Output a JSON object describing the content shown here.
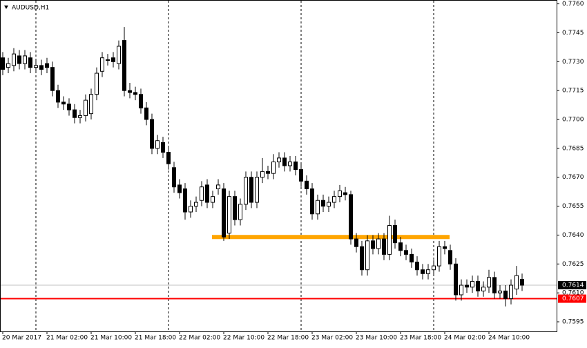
{
  "chart_data": {
    "type": "candlestick",
    "title": "AUDUSD,H1",
    "categories": [
      "20 Mar 2017",
      null,
      null,
      null,
      null,
      null,
      null,
      null,
      "21 Mar 02:00",
      null,
      null,
      null,
      null,
      null,
      null,
      null,
      "21 Mar 10:00",
      null,
      null,
      null,
      null,
      null,
      null,
      null,
      "21 Mar 18:00",
      null,
      null,
      null,
      null,
      null,
      null,
      null,
      "22 Mar 02:00",
      null,
      null,
      null,
      null,
      null,
      null,
      null,
      "22 Mar 10:00",
      null,
      null,
      null,
      null,
      null,
      null,
      null,
      "22 Mar 18:00",
      null,
      null,
      null,
      null,
      null,
      null,
      null,
      "23 Mar 02:00",
      null,
      null,
      null,
      null,
      null,
      null,
      null,
      "23 Mar 10:00",
      null,
      null,
      null,
      null,
      null,
      null,
      null,
      "23 Mar 18:00",
      null,
      null,
      null,
      null,
      null,
      null,
      null,
      "24 Mar 02:00",
      null,
      null,
      null,
      null,
      null,
      null,
      null,
      "24 Mar 10:00",
      null,
      null,
      null,
      null,
      null,
      null
    ],
    "open": [
      0.7732,
      0.7727,
      0.7728,
      0.7733,
      0.7729,
      0.7732,
      0.7727,
      0.7728,
      0.7729,
      0.7727,
      0.7715,
      0.7709,
      0.7708,
      0.7705,
      0.7701,
      0.7702,
      0.7703,
      0.7713,
      0.7725,
      0.7731,
      0.7732,
      0.7729,
      0.7741,
      0.7715,
      0.7714,
      0.7713,
      0.7706,
      0.77,
      0.7685,
      0.7688,
      0.7683,
      0.7675,
      0.7666,
      0.7664,
      0.7652,
      0.7655,
      0.7658,
      0.7666,
      0.7657,
      0.7664,
      0.7664,
      0.7641,
      0.766,
      0.7648,
      0.7656,
      0.767,
      0.7657,
      0.767,
      0.7673,
      0.7672,
      0.7678,
      0.768,
      0.7676,
      0.7678,
      0.7674,
      0.7668,
      0.7664,
      0.7651,
      0.7658,
      0.7655,
      0.7657,
      0.766,
      0.7662,
      0.7661,
      0.7638,
      0.7634,
      0.7622,
      0.7637,
      0.7633,
      0.7638,
      0.763,
      0.7645,
      0.7636,
      0.7632,
      0.763,
      0.7626,
      0.7622,
      0.762,
      0.7622,
      0.7624,
      0.7634,
      0.7632,
      0.7625,
      0.7609,
      0.7614,
      0.7613,
      0.7616,
      0.7611,
      0.7613,
      0.7618,
      0.761,
      0.7611,
      0.7607,
      0.7612,
      0.7617
    ],
    "high": [
      0.7735,
      0.7732,
      0.7737,
      0.7736,
      0.7736,
      0.7735,
      0.7731,
      0.7731,
      0.7732,
      0.773,
      0.7718,
      0.7712,
      0.7711,
      0.7708,
      0.7705,
      0.7713,
      0.7716,
      0.7727,
      0.7735,
      0.7734,
      0.7735,
      0.7741,
      0.7748,
      0.7719,
      0.7717,
      0.7716,
      0.7709,
      0.7703,
      0.7692,
      0.7691,
      0.7686,
      0.7678,
      0.7669,
      0.7667,
      0.7658,
      0.766,
      0.7668,
      0.7669,
      0.7663,
      0.7669,
      0.7667,
      0.7663,
      0.7663,
      0.7659,
      0.7673,
      0.7673,
      0.7673,
      0.768,
      0.7676,
      0.7682,
      0.7683,
      0.7683,
      0.7681,
      0.7681,
      0.7677,
      0.7671,
      0.7667,
      0.7661,
      0.7661,
      0.766,
      0.7663,
      0.7666,
      0.7665,
      0.7663,
      0.7641,
      0.7637,
      0.764,
      0.764,
      0.7641,
      0.7641,
      0.765,
      0.7648,
      0.7639,
      0.7635,
      0.7633,
      0.7629,
      0.7625,
      0.7625,
      0.7627,
      0.7637,
      0.7637,
      0.7635,
      0.7628,
      0.7617,
      0.7617,
      0.7619,
      0.7619,
      0.7616,
      0.7622,
      0.7621,
      0.7614,
      0.7614,
      0.7617,
      0.7624,
      0.762
    ],
    "low": [
      0.7723,
      0.7724,
      0.7725,
      0.7726,
      0.7726,
      0.7724,
      0.7724,
      0.7723,
      0.7724,
      0.7712,
      0.7706,
      0.7705,
      0.7702,
      0.7698,
      0.7698,
      0.7699,
      0.77,
      0.771,
      0.7722,
      0.7728,
      0.7727,
      0.7726,
      0.7712,
      0.7711,
      0.771,
      0.7703,
      0.7697,
      0.7682,
      0.7682,
      0.768,
      0.7674,
      0.7662,
      0.7659,
      0.7648,
      0.7649,
      0.7652,
      0.7655,
      0.7654,
      0.7654,
      0.7661,
      0.7637,
      0.7638,
      0.7645,
      0.7645,
      0.7653,
      0.7654,
      0.7654,
      0.7667,
      0.7669,
      0.7669,
      0.7675,
      0.7673,
      0.7673,
      0.7671,
      0.7665,
      0.7661,
      0.7648,
      0.7648,
      0.7652,
      0.7652,
      0.7654,
      0.7657,
      0.7658,
      0.7635,
      0.7631,
      0.7619,
      0.7619,
      0.763,
      0.763,
      0.7627,
      0.7627,
      0.7633,
      0.7629,
      0.7627,
      0.7623,
      0.7619,
      0.7617,
      0.7617,
      0.7619,
      0.7621,
      0.763,
      0.7622,
      0.7606,
      0.7606,
      0.761,
      0.761,
      0.7608,
      0.7608,
      0.761,
      0.7607,
      0.7607,
      0.7603,
      0.7604,
      0.7609,
      0.7611
    ],
    "close": [
      0.7726,
      0.7729,
      0.7734,
      0.7729,
      0.7733,
      0.7727,
      0.7728,
      0.7726,
      0.7727,
      0.7715,
      0.7709,
      0.7708,
      0.7705,
      0.7701,
      0.7702,
      0.771,
      0.7713,
      0.7724,
      0.7732,
      0.7731,
      0.773,
      0.7738,
      0.7715,
      0.7714,
      0.7713,
      0.7706,
      0.77,
      0.7685,
      0.7689,
      0.7683,
      0.7677,
      0.7665,
      0.7662,
      0.7652,
      0.7655,
      0.7657,
      0.7665,
      0.7657,
      0.766,
      0.7666,
      0.7639,
      0.766,
      0.7648,
      0.7656,
      0.767,
      0.7657,
      0.767,
      0.7673,
      0.7672,
      0.7678,
      0.768,
      0.7676,
      0.7678,
      0.7674,
      0.7668,
      0.7664,
      0.7651,
      0.7658,
      0.7655,
      0.7657,
      0.766,
      0.7663,
      0.7661,
      0.7638,
      0.7634,
      0.7622,
      0.7637,
      0.7633,
      0.7638,
      0.763,
      0.7645,
      0.7636,
      0.7632,
      0.763,
      0.7626,
      0.7622,
      0.762,
      0.7622,
      0.7624,
      0.7634,
      0.7633,
      0.7625,
      0.7609,
      0.7614,
      0.7613,
      0.7616,
      0.7611,
      0.7613,
      0.7618,
      0.761,
      0.7611,
      0.7607,
      0.7614,
      0.7619,
      0.7614
    ],
    "up_color": "#ffffff",
    "down_color": "#000000",
    "ylim": [
      0.759,
      0.7762
    ],
    "yticks": [
      {
        "value": 0.776,
        "label": "0.7760"
      },
      0.7745,
      {
        "value": 0.773,
        "label": "0.7730"
      },
      0.7715,
      {
        "value": 0.77,
        "label": "0.7700"
      },
      0.7685,
      {
        "value": 0.767,
        "label": "0.7670"
      },
      0.7655,
      {
        "value": 0.764,
        "label": "0.7640"
      },
      0.7625,
      {
        "value": 0.761,
        "label": "0.7610"
      },
      0.7595
    ],
    "support_level": 0.7639,
    "support_color": "#ffa500",
    "red_line": 0.7607,
    "red_color": "#ff0000",
    "bid": 0.7614
  }
}
